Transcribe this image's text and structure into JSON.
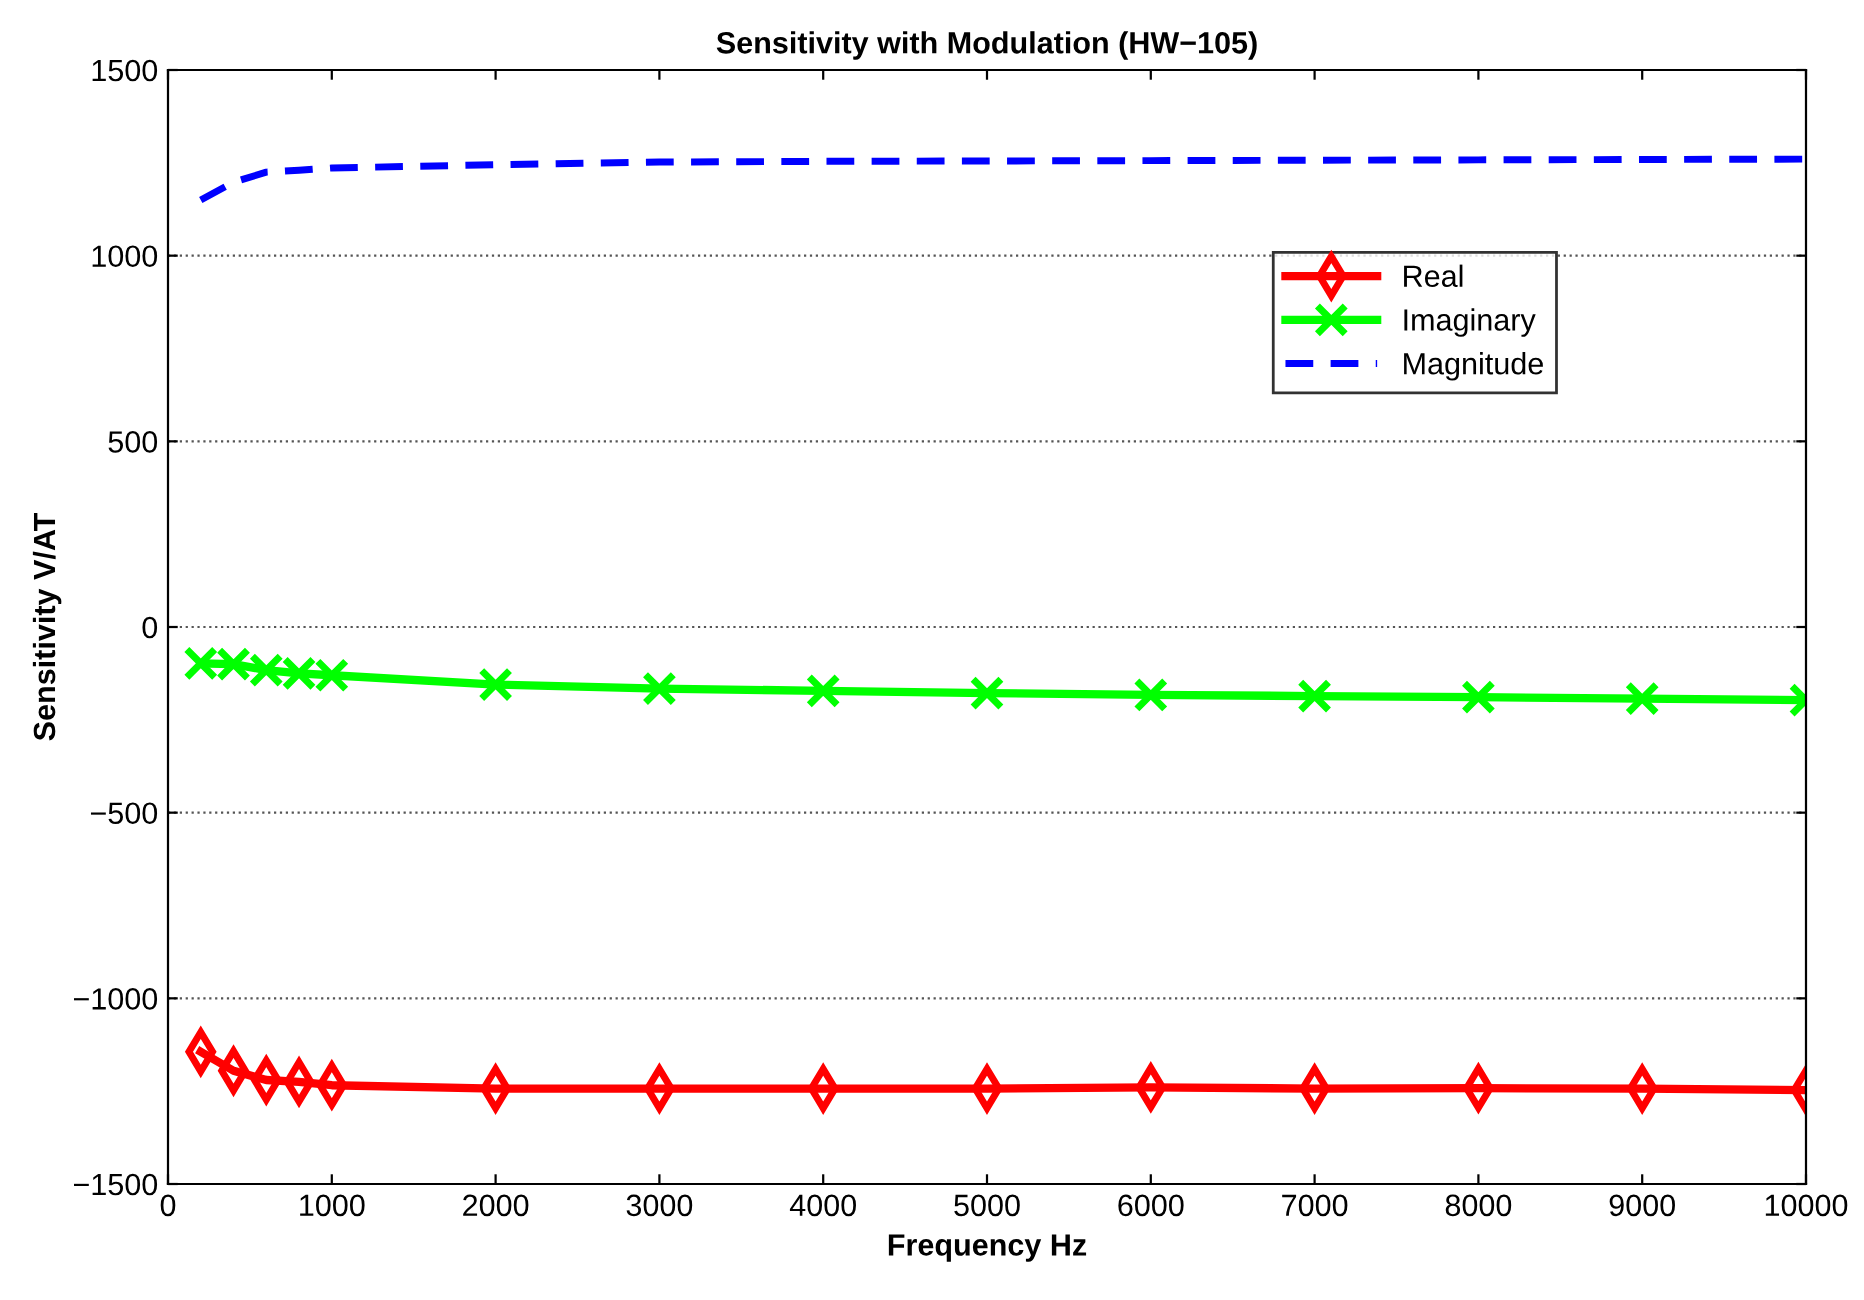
{
  "chart_data": {
    "type": "line",
    "title": "Sensitivity with Modulation (HW−105)",
    "xlabel": "Frequency Hz",
    "ylabel": "Sensitivity V/AT",
    "x": [
      200,
      400,
      600,
      800,
      1000,
      2000,
      3000,
      4000,
      5000,
      6000,
      7000,
      8000,
      9000,
      10000
    ],
    "series": [
      {
        "name": "Real",
        "color": "#ff0000",
        "marker": "diamond",
        "line_style": "solid",
        "values": [
          -1144,
          -1195,
          -1220,
          -1225,
          -1234,
          -1243,
          -1243,
          -1243,
          -1243,
          -1240,
          -1243,
          -1242,
          -1243,
          -1247
        ]
      },
      {
        "name": "Imaginary",
        "color": "#00ff00",
        "marker": "cross",
        "line_style": "solid",
        "values": [
          -98,
          -100,
          -116,
          -125,
          -130,
          -155,
          -166,
          -172,
          -178,
          -183,
          -186,
          -189,
          -193,
          -197
        ]
      },
      {
        "name": "Magnitude",
        "color": "#0000ff",
        "marker": "none",
        "line_style": "dashed",
        "values": [
          1150,
          1198,
          1225,
          1230,
          1236,
          1245,
          1252,
          1254,
          1255,
          1256,
          1257,
          1258,
          1259,
          1260
        ]
      }
    ],
    "xlim": [
      0,
      10000
    ],
    "xticks": [
      0,
      1000,
      2000,
      3000,
      4000,
      5000,
      6000,
      7000,
      8000,
      9000,
      10000
    ],
    "ylim": [
      -1500,
      1500
    ],
    "yticks": [
      -1500,
      -1000,
      -500,
      0,
      500,
      1000,
      1500
    ],
    "grid": "y",
    "legend": "top right"
  }
}
